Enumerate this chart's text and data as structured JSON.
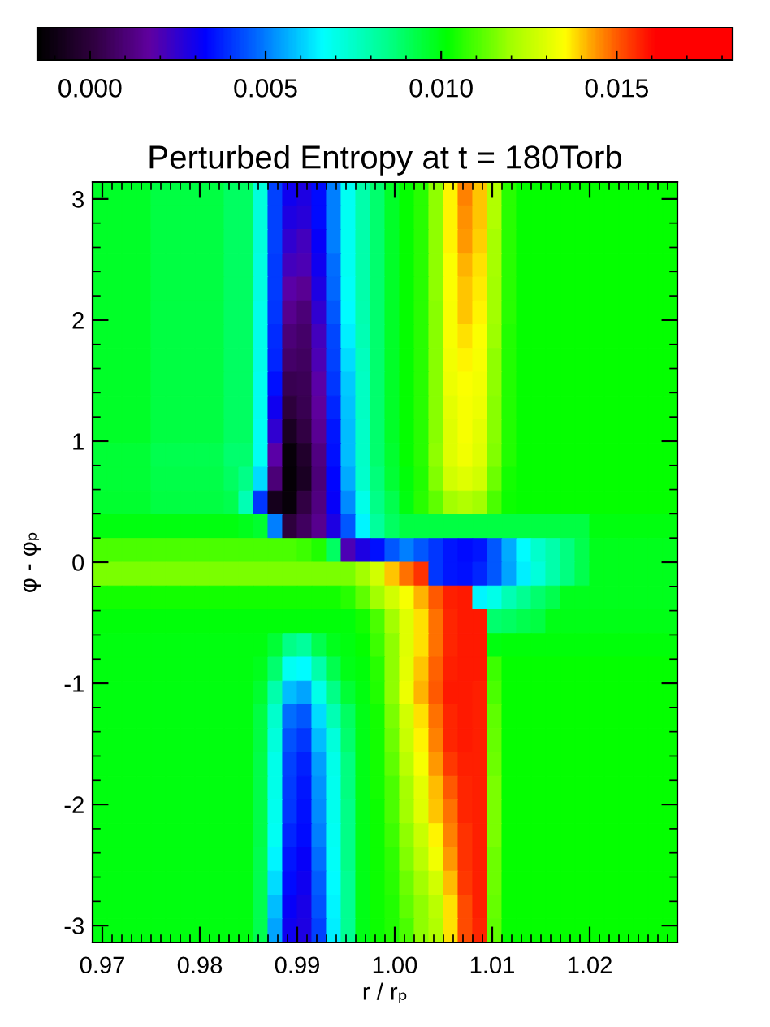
{
  "chart_data": {
    "type": "heatmap",
    "title": "Perturbed Entropy at t = 180Torb",
    "xlabel": "r / rₚ",
    "ylabel": "φ - φₚ",
    "xlim": [
      0.969,
      1.029
    ],
    "ylim": [
      -3.14,
      3.14
    ],
    "xticks": [
      0.97,
      0.98,
      0.99,
      {
        "value": 1.0,
        "label": "1.00"
      },
      1.01,
      1.02
    ],
    "yticks": [
      -3,
      -2,
      -1,
      0,
      1,
      2,
      3
    ],
    "clim": [
      -0.0015,
      0.0183
    ],
    "cticks": [
      {
        "value": 0,
        "label": "0.000"
      },
      {
        "value": 0.005,
        "label": "0.005"
      },
      {
        "value": 0.01,
        "label": "0.010"
      },
      {
        "value": 0.015,
        "label": "0.015"
      }
    ],
    "cells": [
      [
        0.0097,
        0.0097,
        0.0097,
        0.0097,
        0.0094,
        0.0094,
        0.0094,
        0.0094,
        0.0094,
        0.009,
        0.009,
        0.0072,
        0.0042,
        0.003,
        0.0028,
        0.0034,
        0.005,
        0.0068,
        0.008,
        0.0088,
        0.0097,
        0.0102,
        0.0106,
        0.0118,
        0.0136,
        0.0146,
        0.014,
        0.0122,
        0.0106,
        0.0102,
        0.0102,
        0.0102,
        0.0102,
        0.0102,
        0.0102,
        0.0102,
        0.0102,
        0.0102,
        0.0102,
        0.0102
      ],
      [
        0.0097,
        0.0097,
        0.0097,
        0.0097,
        0.0094,
        0.0094,
        0.0094,
        0.0094,
        0.0094,
        0.009,
        0.009,
        0.0072,
        0.0042,
        0.0028,
        0.0026,
        0.0034,
        0.005,
        0.0068,
        0.008,
        0.0088,
        0.0097,
        0.0102,
        0.0106,
        0.0118,
        0.0136,
        0.0145,
        0.014,
        0.0122,
        0.0106,
        0.0102,
        0.0102,
        0.0102,
        0.0102,
        0.0102,
        0.0102,
        0.0102,
        0.0102,
        0.0102,
        0.0102,
        0.0102
      ],
      [
        0.0097,
        0.0097,
        0.0097,
        0.0097,
        0.0094,
        0.0094,
        0.0094,
        0.0094,
        0.0094,
        0.009,
        0.009,
        0.0072,
        0.0042,
        0.0025,
        0.0022,
        0.0032,
        0.005,
        0.0068,
        0.008,
        0.0088,
        0.0097,
        0.0102,
        0.0106,
        0.0118,
        0.0136,
        0.0144,
        0.0139,
        0.0121,
        0.0106,
        0.0102,
        0.0102,
        0.0102,
        0.0102,
        0.0102,
        0.0102,
        0.0102,
        0.0102,
        0.0102,
        0.0102,
        0.0102
      ],
      [
        0.0097,
        0.0097,
        0.0097,
        0.0097,
        0.0094,
        0.0094,
        0.0094,
        0.0094,
        0.0094,
        0.009,
        0.009,
        0.0071,
        0.0041,
        0.0022,
        0.002,
        0.003,
        0.0048,
        0.0068,
        0.008,
        0.0088,
        0.0097,
        0.0102,
        0.0106,
        0.0118,
        0.0135,
        0.0142,
        0.0138,
        0.0121,
        0.0106,
        0.0102,
        0.0102,
        0.0102,
        0.0102,
        0.0102,
        0.0102,
        0.0102,
        0.0102,
        0.0102,
        0.0102,
        0.0102
      ],
      [
        0.0097,
        0.0097,
        0.0097,
        0.0097,
        0.0094,
        0.0094,
        0.0094,
        0.0094,
        0.0094,
        0.009,
        0.009,
        0.0071,
        0.0041,
        0.0018,
        0.0015,
        0.0028,
        0.0047,
        0.0067,
        0.008,
        0.0088,
        0.0097,
        0.0102,
        0.0106,
        0.0118,
        0.0135,
        0.014,
        0.0137,
        0.012,
        0.0106,
        0.0102,
        0.0102,
        0.0102,
        0.0102,
        0.0102,
        0.0102,
        0.0102,
        0.0102,
        0.0102,
        0.0102,
        0.0102
      ],
      [
        0.0097,
        0.0097,
        0.0097,
        0.0097,
        0.0094,
        0.0094,
        0.0094,
        0.0094,
        0.0094,
        0.009,
        0.009,
        0.007,
        0.004,
        0.0014,
        0.001,
        0.0025,
        0.0045,
        0.0066,
        0.0079,
        0.0088,
        0.0097,
        0.0102,
        0.0106,
        0.0117,
        0.0134,
        0.014,
        0.0136,
        0.012,
        0.0106,
        0.0102,
        0.0102,
        0.0102,
        0.0102,
        0.0102,
        0.0102,
        0.0102,
        0.0102,
        0.0102,
        0.0102,
        0.0102
      ],
      [
        0.0097,
        0.0097,
        0.0097,
        0.0097,
        0.0094,
        0.0094,
        0.0094,
        0.0094,
        0.0094,
        0.009,
        0.009,
        0.007,
        0.0039,
        0.001,
        0.0008,
        0.0022,
        0.0043,
        0.0064,
        0.0078,
        0.0088,
        0.0097,
        0.0102,
        0.0106,
        0.0117,
        0.0134,
        0.0138,
        0.0135,
        0.0119,
        0.0105,
        0.0102,
        0.0102,
        0.0102,
        0.0102,
        0.0102,
        0.0102,
        0.0102,
        0.0102,
        0.0102,
        0.0102,
        0.0102
      ],
      [
        0.0097,
        0.0097,
        0.0097,
        0.0097,
        0.0094,
        0.0094,
        0.0094,
        0.0094,
        0.0094,
        0.009,
        0.009,
        0.007,
        0.0038,
        0.0008,
        0.0006,
        0.002,
        0.0042,
        0.0062,
        0.0077,
        0.0088,
        0.0097,
        0.0102,
        0.0106,
        0.0117,
        0.0133,
        0.0136,
        0.0134,
        0.0118,
        0.0105,
        0.0102,
        0.0102,
        0.0102,
        0.0102,
        0.0102,
        0.0102,
        0.0102,
        0.0102,
        0.0102,
        0.0102,
        0.0102
      ],
      [
        0.0097,
        0.0097,
        0.0097,
        0.0097,
        0.0094,
        0.0094,
        0.0094,
        0.0094,
        0.0094,
        0.009,
        0.009,
        0.0069,
        0.0035,
        0.0004,
        0.0005,
        0.0018,
        0.004,
        0.006,
        0.0076,
        0.0088,
        0.0097,
        0.0102,
        0.0106,
        0.0117,
        0.0132,
        0.0135,
        0.0133,
        0.0118,
        0.0105,
        0.0102,
        0.0102,
        0.0102,
        0.0102,
        0.0102,
        0.0102,
        0.0102,
        0.0102,
        0.0102,
        0.0102,
        0.0102
      ],
      [
        0.0097,
        0.0097,
        0.0097,
        0.0097,
        0.0094,
        0.0094,
        0.0094,
        0.0094,
        0.0094,
        0.009,
        0.009,
        0.0069,
        0.003,
        0.0,
        0.0004,
        0.0016,
        0.0038,
        0.0059,
        0.0076,
        0.0088,
        0.0097,
        0.0102,
        0.0106,
        0.0117,
        0.0131,
        0.0134,
        0.0132,
        0.0117,
        0.0105,
        0.0102,
        0.0102,
        0.0102,
        0.0102,
        0.0102,
        0.0102,
        0.0102,
        0.0102,
        0.0102,
        0.0102,
        0.0102
      ],
      [
        0.0097,
        0.0097,
        0.0097,
        0.0097,
        0.0094,
        0.0094,
        0.0094,
        0.0094,
        0.0094,
        0.009,
        0.009,
        0.0068,
        0.0025,
        -0.0006,
        0.0002,
        0.0015,
        0.0036,
        0.0058,
        0.0075,
        0.0088,
        0.0097,
        0.0102,
        0.0106,
        0.0117,
        0.013,
        0.0134,
        0.0131,
        0.0117,
        0.0105,
        0.0102,
        0.0102,
        0.0102,
        0.0102,
        0.0102,
        0.0102,
        0.0102,
        0.0102,
        0.0102,
        0.0102,
        0.0102
      ],
      [
        0.0095,
        0.0095,
        0.0095,
        0.0095,
        0.0092,
        0.0092,
        0.0092,
        0.0092,
        0.0092,
        0.0088,
        0.0088,
        0.0068,
        0.0018,
        -0.0012,
        -0.0004,
        0.0012,
        0.0035,
        0.0058,
        0.0075,
        0.0088,
        0.0096,
        0.0102,
        0.0106,
        0.0118,
        0.013,
        0.0133,
        0.013,
        0.0116,
        0.0105,
        0.0102,
        0.0102,
        0.0102,
        0.0102,
        0.0102,
        0.0102,
        0.0102,
        0.0102,
        0.0102,
        0.0102,
        0.0102
      ],
      [
        0.0095,
        0.0095,
        0.0095,
        0.0095,
        0.0093,
        0.0093,
        0.0093,
        0.0093,
        0.0093,
        0.009,
        0.0085,
        0.0062,
        0.001,
        -0.0013,
        -0.0006,
        0.001,
        0.0033,
        0.0056,
        0.0074,
        0.0087,
        0.0095,
        0.0101,
        0.0105,
        0.0116,
        0.0128,
        0.013,
        0.0128,
        0.0114,
        0.0104,
        0.0102,
        0.0102,
        0.0102,
        0.0102,
        0.0102,
        0.0102,
        0.0102,
        0.0102,
        0.0102,
        0.0102,
        0.0102
      ],
      [
        0.0096,
        0.0096,
        0.0096,
        0.0096,
        0.0094,
        0.0094,
        0.0094,
        0.0094,
        0.0094,
        0.0092,
        0.0078,
        0.004,
        -0.0008,
        -0.0012,
        0.0002,
        0.0012,
        0.0032,
        0.0052,
        0.007,
        0.0085,
        0.0092,
        0.01,
        0.0106,
        0.0112,
        0.012,
        0.0122,
        0.012,
        0.011,
        0.0103,
        0.0102,
        0.0102,
        0.0102,
        0.0102,
        0.0102,
        0.0102,
        0.0102,
        0.0102,
        0.0102,
        0.0102,
        0.0102
      ],
      [
        0.01,
        0.01,
        0.01,
        0.01,
        0.01,
        0.01,
        0.01,
        0.01,
        0.01,
        0.01,
        0.0098,
        0.0096,
        0.005,
        0.0,
        0.0006,
        0.0014,
        0.0028,
        0.0045,
        0.0065,
        0.0082,
        0.009,
        0.0094,
        0.0094,
        0.0094,
        0.0094,
        0.0094,
        0.0094,
        0.0094,
        0.0094,
        0.0094,
        0.0094,
        0.0094,
        0.0094,
        0.0094,
        0.01,
        0.01,
        0.01,
        0.01,
        0.01,
        0.01
      ],
      [
        0.011,
        0.011,
        0.011,
        0.011,
        0.011,
        0.011,
        0.011,
        0.011,
        0.011,
        0.011,
        0.011,
        0.011,
        0.011,
        0.011,
        0.0108,
        0.0105,
        0.009,
        0.002,
        0.0028,
        0.0035,
        0.0045,
        0.005,
        0.0045,
        0.004,
        0.0036,
        0.0034,
        0.0036,
        0.0045,
        0.0056,
        0.0066,
        0.0074,
        0.008,
        0.0086,
        0.0092,
        0.0098,
        0.0098,
        0.0098,
        0.0098,
        0.0098,
        0.0098
      ],
      [
        0.0115,
        0.0115,
        0.0115,
        0.0115,
        0.0115,
        0.0115,
        0.0115,
        0.0115,
        0.0115,
        0.0115,
        0.0115,
        0.0115,
        0.0115,
        0.0115,
        0.0115,
        0.0115,
        0.0115,
        0.0115,
        0.012,
        0.0128,
        0.014,
        0.0148,
        0.0155,
        0.004,
        0.0036,
        0.0035,
        0.0038,
        0.0045,
        0.0055,
        0.0064,
        0.0072,
        0.008,
        0.0086,
        0.0092,
        0.0098,
        0.0098,
        0.0098,
        0.0098,
        0.0098,
        0.0098
      ],
      [
        0.0104,
        0.0104,
        0.0104,
        0.0104,
        0.0104,
        0.0104,
        0.0104,
        0.0104,
        0.0104,
        0.0104,
        0.0104,
        0.0104,
        0.0104,
        0.0104,
        0.0104,
        0.0104,
        0.0104,
        0.0106,
        0.0112,
        0.012,
        0.0128,
        0.0134,
        0.0142,
        0.015,
        0.0157,
        0.0158,
        0.0065,
        0.007,
        0.0078,
        0.0084,
        0.0088,
        0.0092,
        0.0098,
        0.0098,
        0.0098,
        0.0098,
        0.0098,
        0.0098,
        0.0098,
        0.0098
      ],
      [
        0.0101,
        0.0101,
        0.0101,
        0.0101,
        0.0101,
        0.0101,
        0.0101,
        0.0101,
        0.0101,
        0.0101,
        0.0101,
        0.0101,
        0.0101,
        0.0101,
        0.0101,
        0.0101,
        0.0101,
        0.0101,
        0.0104,
        0.011,
        0.012,
        0.013,
        0.0138,
        0.0148,
        0.0156,
        0.0158,
        0.0158,
        0.0088,
        0.009,
        0.0092,
        0.0094,
        0.0099,
        0.0099,
        0.0099,
        0.0099,
        0.0099,
        0.0099,
        0.0099,
        0.0099,
        0.0099
      ],
      [
        0.01,
        0.01,
        0.01,
        0.01,
        0.01,
        0.01,
        0.01,
        0.01,
        0.01,
        0.01,
        0.01,
        0.01,
        0.0095,
        0.0085,
        0.0082,
        0.0092,
        0.0098,
        0.01,
        0.0102,
        0.0108,
        0.0118,
        0.013,
        0.0138,
        0.0148,
        0.0156,
        0.0158,
        0.0158,
        0.01,
        0.0101,
        0.0101,
        0.0101,
        0.0101,
        0.0101,
        0.0101,
        0.0101,
        0.0101,
        0.0101,
        0.0101,
        0.0101,
        0.0101
      ],
      [
        0.01,
        0.01,
        0.01,
        0.01,
        0.01,
        0.01,
        0.01,
        0.01,
        0.01,
        0.01,
        0.01,
        0.0098,
        0.0088,
        0.0068,
        0.0066,
        0.008,
        0.0092,
        0.0099,
        0.0101,
        0.0106,
        0.0118,
        0.0131,
        0.014,
        0.0149,
        0.0157,
        0.0158,
        0.0158,
        0.0108,
        0.0102,
        0.0102,
        0.0102,
        0.0102,
        0.0102,
        0.0102,
        0.0102,
        0.0102,
        0.0102,
        0.0102,
        0.0102,
        0.0102
      ],
      [
        0.01,
        0.01,
        0.01,
        0.01,
        0.01,
        0.01,
        0.01,
        0.01,
        0.01,
        0.01,
        0.01,
        0.0096,
        0.008,
        0.0058,
        0.0055,
        0.007,
        0.0085,
        0.0095,
        0.01,
        0.0105,
        0.0118,
        0.0132,
        0.0142,
        0.015,
        0.0158,
        0.0158,
        0.0157,
        0.011,
        0.0102,
        0.0102,
        0.0102,
        0.0102,
        0.0102,
        0.0102,
        0.0102,
        0.0102,
        0.0102,
        0.0102,
        0.0102,
        0.0102
      ],
      [
        0.01,
        0.01,
        0.01,
        0.01,
        0.01,
        0.01,
        0.01,
        0.01,
        0.01,
        0.01,
        0.01,
        0.0094,
        0.0074,
        0.0048,
        0.0045,
        0.0062,
        0.0078,
        0.009,
        0.0099,
        0.0104,
        0.0115,
        0.0128,
        0.0138,
        0.0148,
        0.0156,
        0.0158,
        0.0157,
        0.0112,
        0.0102,
        0.0102,
        0.0102,
        0.0102,
        0.0102,
        0.0102,
        0.0102,
        0.0102,
        0.0102,
        0.0102,
        0.0102,
        0.0102
      ],
      [
        0.01,
        0.01,
        0.01,
        0.01,
        0.01,
        0.01,
        0.01,
        0.01,
        0.01,
        0.01,
        0.01,
        0.0094,
        0.0072,
        0.0044,
        0.004,
        0.0058,
        0.0072,
        0.0088,
        0.0099,
        0.0104,
        0.0114,
        0.0126,
        0.0136,
        0.0146,
        0.0156,
        0.0158,
        0.0157,
        0.0113,
        0.0102,
        0.0102,
        0.0102,
        0.0102,
        0.0102,
        0.0102,
        0.0102,
        0.0102,
        0.0102,
        0.0102,
        0.0102,
        0.0102
      ],
      [
        0.01,
        0.01,
        0.01,
        0.01,
        0.01,
        0.01,
        0.01,
        0.01,
        0.01,
        0.01,
        0.01,
        0.0093,
        0.007,
        0.0042,
        0.0037,
        0.0054,
        0.007,
        0.0086,
        0.0099,
        0.0104,
        0.0112,
        0.0124,
        0.0134,
        0.0144,
        0.0154,
        0.0157,
        0.0157,
        0.0114,
        0.0102,
        0.0102,
        0.0102,
        0.0102,
        0.0102,
        0.0102,
        0.0102,
        0.0102,
        0.0102,
        0.0102,
        0.0102,
        0.0102
      ],
      [
        0.01,
        0.01,
        0.01,
        0.01,
        0.01,
        0.01,
        0.01,
        0.01,
        0.01,
        0.01,
        0.01,
        0.0093,
        0.007,
        0.0041,
        0.0036,
        0.0053,
        0.0069,
        0.0086,
        0.0099,
        0.0104,
        0.011,
        0.0121,
        0.0131,
        0.0141,
        0.015,
        0.0156,
        0.0157,
        0.0115,
        0.0102,
        0.0102,
        0.0102,
        0.0102,
        0.0102,
        0.0102,
        0.0102,
        0.0102,
        0.0102,
        0.0102,
        0.0102,
        0.0102
      ],
      [
        0.01,
        0.01,
        0.01,
        0.01,
        0.01,
        0.01,
        0.01,
        0.01,
        0.01,
        0.01,
        0.01,
        0.0093,
        0.0069,
        0.004,
        0.0035,
        0.0052,
        0.0069,
        0.0085,
        0.0099,
        0.0103,
        0.011,
        0.012,
        0.013,
        0.014,
        0.0148,
        0.0156,
        0.0157,
        0.0115,
        0.0102,
        0.0102,
        0.0102,
        0.0102,
        0.0102,
        0.0102,
        0.0102,
        0.0102,
        0.0102,
        0.0102,
        0.0102,
        0.0102
      ],
      [
        0.01,
        0.01,
        0.01,
        0.01,
        0.01,
        0.01,
        0.01,
        0.01,
        0.01,
        0.01,
        0.01,
        0.0093,
        0.0068,
        0.0038,
        0.0034,
        0.005,
        0.0068,
        0.0085,
        0.0099,
        0.0103,
        0.0108,
        0.0118,
        0.0126,
        0.0136,
        0.0146,
        0.0155,
        0.0157,
        0.0115,
        0.0102,
        0.0102,
        0.0102,
        0.0102,
        0.0102,
        0.0102,
        0.0102,
        0.0102,
        0.0102,
        0.0102,
        0.0102,
        0.0102
      ],
      [
        0.01,
        0.01,
        0.01,
        0.01,
        0.01,
        0.01,
        0.01,
        0.01,
        0.01,
        0.01,
        0.01,
        0.0092,
        0.0065,
        0.0036,
        0.0032,
        0.0048,
        0.0067,
        0.0085,
        0.0099,
        0.0103,
        0.0107,
        0.0116,
        0.0124,
        0.0133,
        0.0144,
        0.0155,
        0.0157,
        0.0114,
        0.0102,
        0.0102,
        0.0102,
        0.0102,
        0.0102,
        0.0102,
        0.0102,
        0.0102,
        0.0102,
        0.0102,
        0.0102,
        0.0102
      ],
      [
        0.01,
        0.01,
        0.01,
        0.01,
        0.01,
        0.01,
        0.01,
        0.01,
        0.01,
        0.01,
        0.01,
        0.0092,
        0.0062,
        0.0034,
        0.003,
        0.0046,
        0.0066,
        0.0084,
        0.0099,
        0.0103,
        0.0106,
        0.0114,
        0.012,
        0.0128,
        0.0141,
        0.0154,
        0.0157,
        0.0114,
        0.0102,
        0.0102,
        0.0102,
        0.0102,
        0.0102,
        0.0102,
        0.0102,
        0.0102,
        0.0102,
        0.0102,
        0.0102,
        0.0102
      ],
      [
        0.01,
        0.01,
        0.01,
        0.01,
        0.01,
        0.01,
        0.01,
        0.01,
        0.01,
        0.01,
        0.01,
        0.0092,
        0.0058,
        0.0032,
        0.0029,
        0.0044,
        0.0065,
        0.0084,
        0.0099,
        0.0103,
        0.0105,
        0.0112,
        0.0118,
        0.0124,
        0.0138,
        0.0152,
        0.0157,
        0.0113,
        0.0102,
        0.0102,
        0.0102,
        0.0102,
        0.0102,
        0.0102,
        0.0102,
        0.0102,
        0.0102,
        0.0102,
        0.0102,
        0.0102
      ],
      [
        0.01,
        0.01,
        0.01,
        0.01,
        0.01,
        0.01,
        0.01,
        0.01,
        0.01,
        0.01,
        0.01,
        0.0092,
        0.0055,
        0.003,
        0.0028,
        0.0042,
        0.0064,
        0.0084,
        0.0099,
        0.0103,
        0.0105,
        0.011,
        0.0118,
        0.0122,
        0.0138,
        0.0152,
        0.0156,
        0.0112,
        0.0102,
        0.0102,
        0.0102,
        0.0102,
        0.0102,
        0.0102,
        0.0102,
        0.0102,
        0.0102,
        0.0102,
        0.0102,
        0.0102
      ]
    ]
  }
}
